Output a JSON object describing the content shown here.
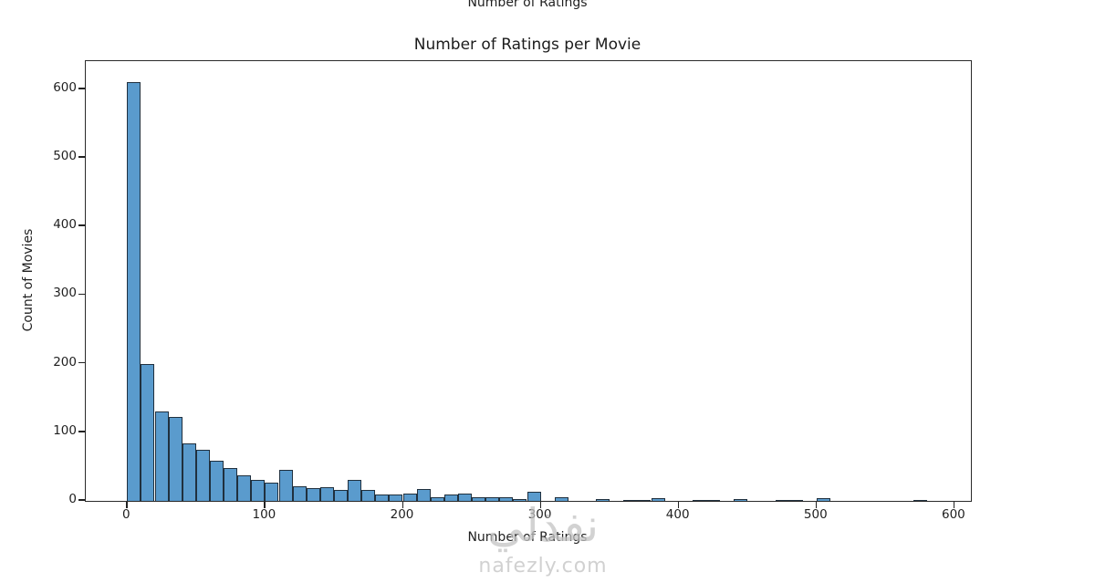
{
  "header": {
    "cutoff_text": "Number of Ratings"
  },
  "chart_data": {
    "type": "bar",
    "subtype": "histogram",
    "title": "Number of Ratings per Movie",
    "xlabel": "Number of Ratings",
    "ylabel": "Count of Movies",
    "x_ticks": [
      0,
      100,
      200,
      300,
      400,
      500,
      600
    ],
    "y_ticks": [
      0,
      100,
      200,
      300,
      400,
      500,
      600
    ],
    "xlim": [
      -30,
      612
    ],
    "ylim": [
      0,
      641
    ],
    "grid": false,
    "legend": "none",
    "bin_width": 10,
    "bar_color": "#5a9bcd",
    "bar_edge_color": "#20303e",
    "bars": [
      {
        "x0": 0,
        "count": 610
      },
      {
        "x0": 10,
        "count": 200
      },
      {
        "x0": 20,
        "count": 130
      },
      {
        "x0": 30,
        "count": 122
      },
      {
        "x0": 40,
        "count": 84
      },
      {
        "x0": 50,
        "count": 74
      },
      {
        "x0": 60,
        "count": 58
      },
      {
        "x0": 70,
        "count": 48
      },
      {
        "x0": 80,
        "count": 37
      },
      {
        "x0": 90,
        "count": 31
      },
      {
        "x0": 100,
        "count": 27
      },
      {
        "x0": 110,
        "count": 45
      },
      {
        "x0": 120,
        "count": 22
      },
      {
        "x0": 130,
        "count": 19
      },
      {
        "x0": 140,
        "count": 20
      },
      {
        "x0": 150,
        "count": 16
      },
      {
        "x0": 160,
        "count": 30
      },
      {
        "x0": 170,
        "count": 16
      },
      {
        "x0": 180,
        "count": 10
      },
      {
        "x0": 190,
        "count": 9
      },
      {
        "x0": 200,
        "count": 11
      },
      {
        "x0": 210,
        "count": 17
      },
      {
        "x0": 220,
        "count": 6
      },
      {
        "x0": 230,
        "count": 9
      },
      {
        "x0": 240,
        "count": 11
      },
      {
        "x0": 250,
        "count": 5
      },
      {
        "x0": 260,
        "count": 6
      },
      {
        "x0": 270,
        "count": 5
      },
      {
        "x0": 280,
        "count": 3
      },
      {
        "x0": 290,
        "count": 14
      },
      {
        "x0": 310,
        "count": 6
      },
      {
        "x0": 340,
        "count": 3
      },
      {
        "x0": 360,
        "count": 2
      },
      {
        "x0": 370,
        "count": 2
      },
      {
        "x0": 380,
        "count": 4
      },
      {
        "x0": 410,
        "count": 2
      },
      {
        "x0": 420,
        "count": 2
      },
      {
        "x0": 440,
        "count": 3
      },
      {
        "x0": 470,
        "count": 2
      },
      {
        "x0": 480,
        "count": 2
      },
      {
        "x0": 500,
        "count": 4
      },
      {
        "x0": 570,
        "count": 2
      }
    ]
  },
  "watermark": {
    "logo_text": "نفذلي",
    "domain_text": "nafezly.com"
  }
}
